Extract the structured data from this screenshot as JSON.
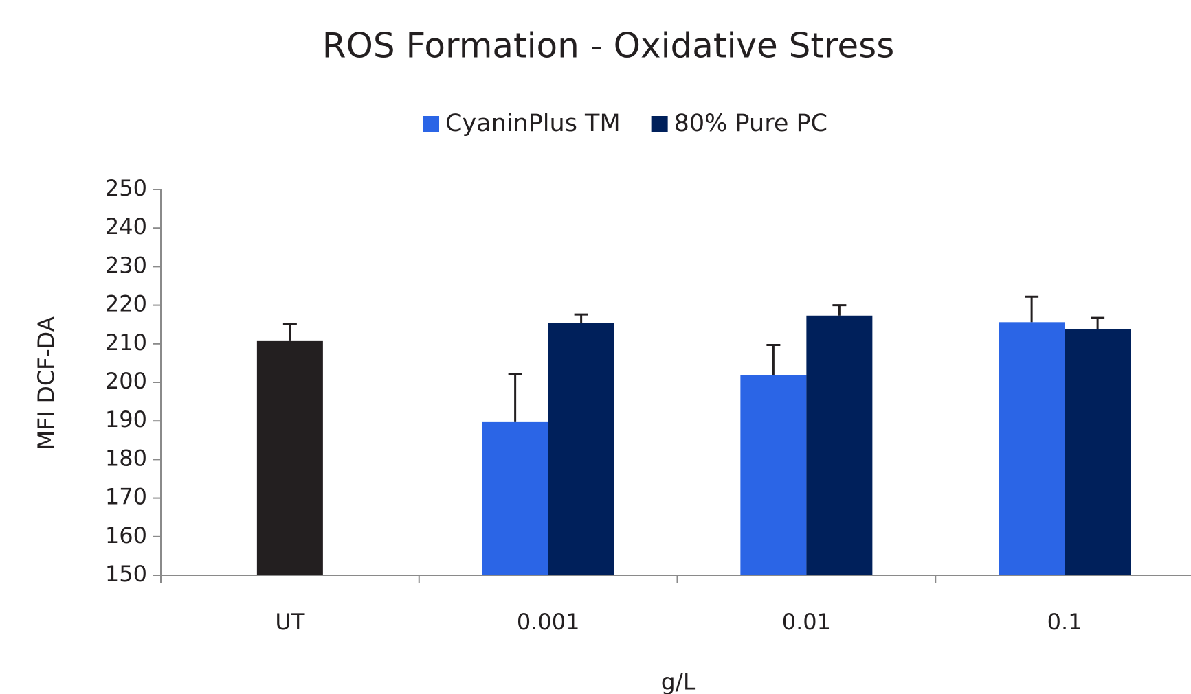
{
  "chart_data": {
    "type": "bar",
    "title": "ROS Formation - Oxidative Stress",
    "x_label": "g/L",
    "y_label": "MFI DCF-DA",
    "categories": [
      "UT",
      "0.001",
      "0.01",
      "0.1"
    ],
    "series": [
      {
        "color": "#231f20",
        "values": [
          210.7,
          null,
          null,
          null
        ],
        "errors": [
          4.4,
          null,
          null,
          null
        ]
      },
      {
        "name": "CyaninPlus TM",
        "color": "#2b65e6",
        "values": [
          null,
          189.7,
          201.9,
          215.6
        ],
        "errors": [
          null,
          12.4,
          7.8,
          6.6
        ]
      },
      {
        "name": "80% Pure PC",
        "color": "#00205b",
        "values": [
          null,
          215.4,
          217.3,
          213.8
        ],
        "errors": [
          null,
          2.2,
          2.7,
          2.9
        ]
      }
    ],
    "ylim": [
      150,
      250
    ],
    "yticks": [
      150,
      160,
      170,
      180,
      190,
      200,
      210,
      220,
      230,
      240,
      250
    ],
    "legend": "top"
  }
}
